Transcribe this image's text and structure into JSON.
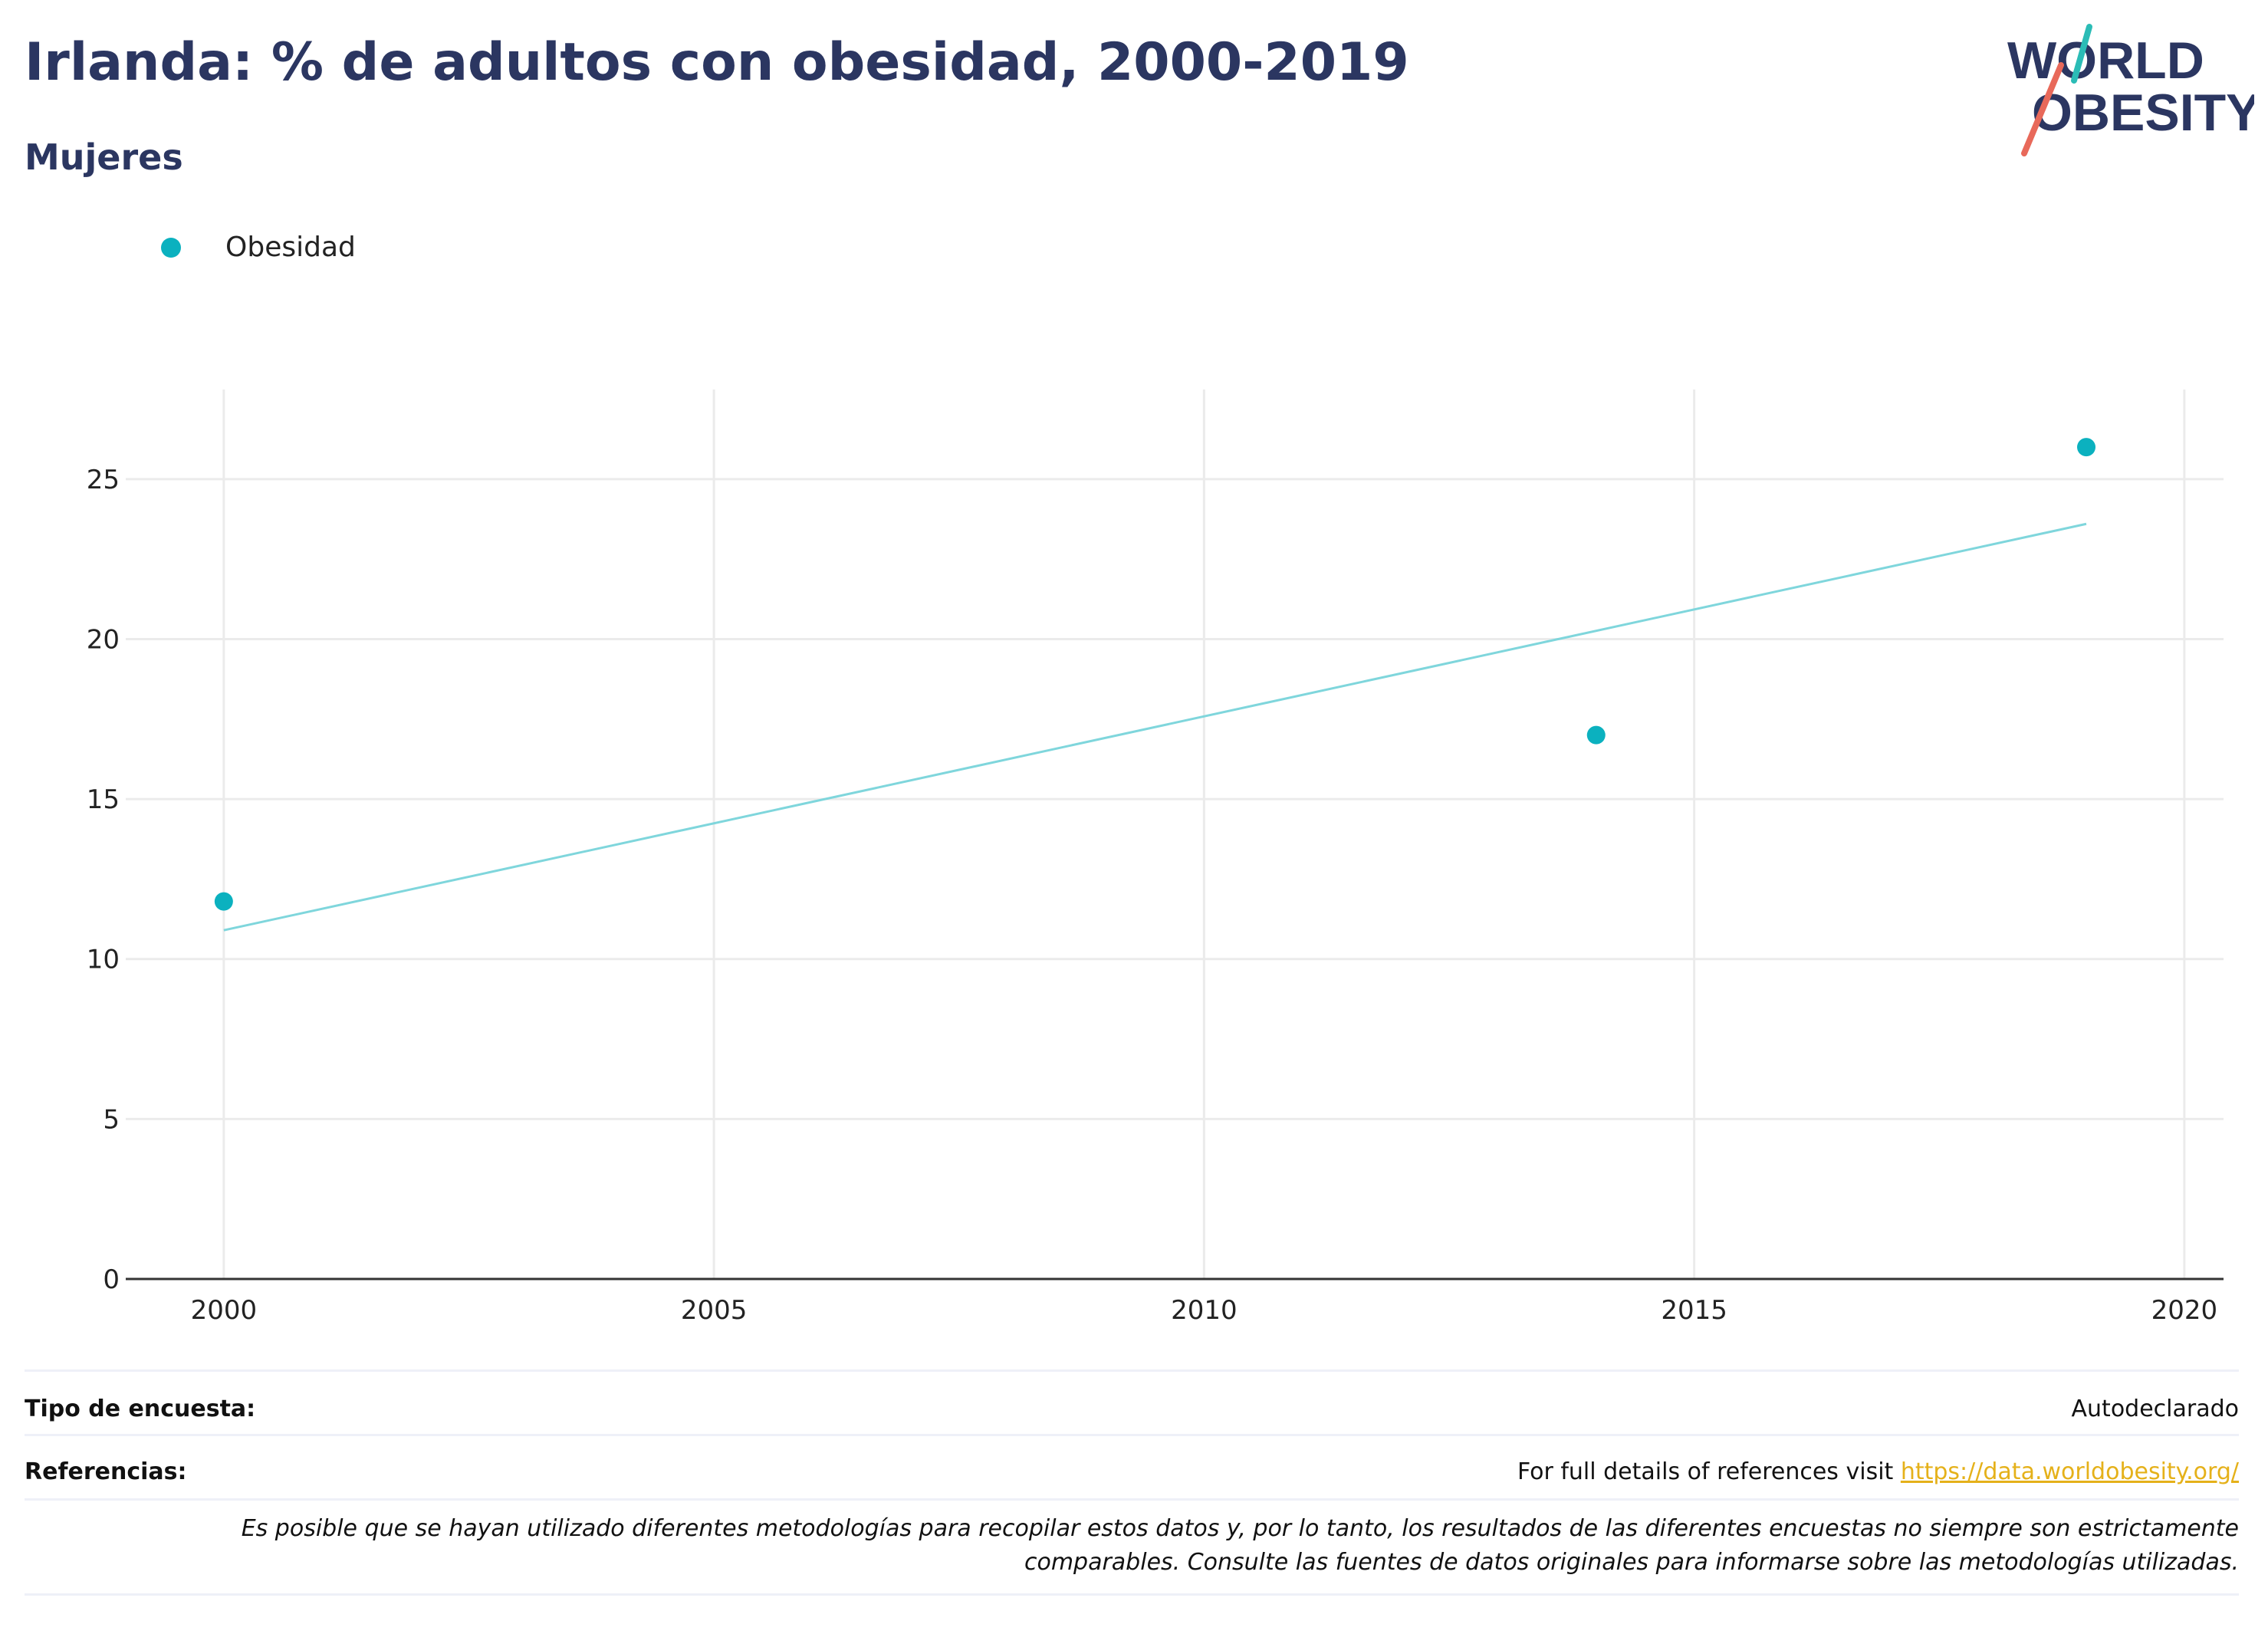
{
  "header": {
    "title": "Irlanda: % de adultos con obesidad, 2000-2019",
    "subtitle": "Mujeres"
  },
  "logo": {
    "line1": "WORLD",
    "line2": "OBESITY",
    "colors": {
      "text": "#2b3661",
      "teal": "#2bbcb6",
      "red": "#e8695a"
    }
  },
  "legend": {
    "items": [
      {
        "label": "Obesidad",
        "color": "#0bb1bf"
      }
    ]
  },
  "chart_data": {
    "type": "scatter",
    "title": "Irlanda: % de adultos con obesidad, 2000-2019",
    "subtitle": "Mujeres",
    "xlabel": "",
    "ylabel": "",
    "xlim": [
      1999.0,
      2020.4
    ],
    "ylim": [
      0,
      27.8
    ],
    "x_ticks": [
      2000,
      2005,
      2010,
      2015,
      2020
    ],
    "y_ticks": [
      0,
      5,
      10,
      15,
      20,
      25
    ],
    "grid": true,
    "legend_position": "top-left",
    "series": [
      {
        "name": "Obesidad",
        "color": "#0bb1bf",
        "points": [
          {
            "x": 2000,
            "y": 11.8
          },
          {
            "x": 2014,
            "y": 17.0
          },
          {
            "x": 2019,
            "y": 26.0
          }
        ]
      }
    ],
    "trendline": {
      "color": "#7fd6dc",
      "points": [
        {
          "x": 2000,
          "y": 10.9
        },
        {
          "x": 2019,
          "y": 23.6
        }
      ]
    }
  },
  "footer": {
    "survey_label": "Tipo de encuesta:",
    "survey_value": "Autodeclarado",
    "references_label": "Referencias:",
    "references_text": "For full details of references visit ",
    "references_link": "https://data.worldobesity.org/",
    "disclaimer_line1": "Es posible que se hayan utilizado diferentes metodologías para recopilar estos datos y, por lo tanto, los resultados de las diferentes encuestas no siempre son estrictamente",
    "disclaimer_line2": "comparables. Consulte las fuentes de datos originales para informarse sobre las metodologías utilizadas."
  }
}
